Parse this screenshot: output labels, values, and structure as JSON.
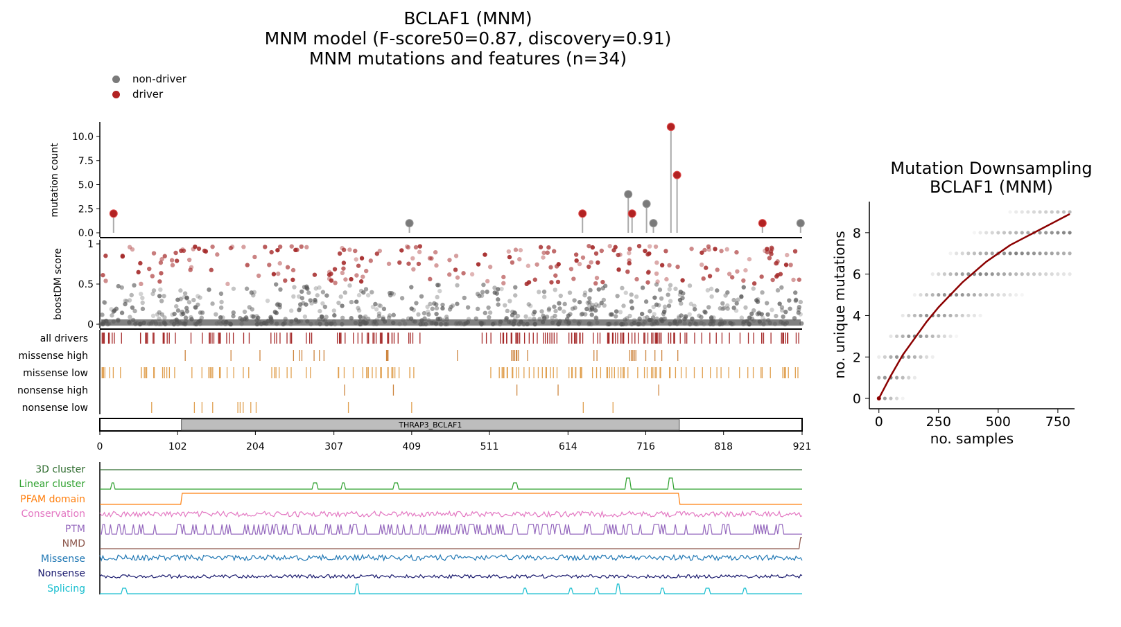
{
  "titles": {
    "line1": "BCLAF1 (MNM)",
    "line2": "MNM model (F-score50=0.87, discovery=0.91)",
    "line3": "MNM mutations and features (n=34)"
  },
  "legend": {
    "non_driver": "non-driver",
    "driver": "driver",
    "colors": {
      "non_driver": "#7a7a7a",
      "driver": "#b22222"
    }
  },
  "chart_data": [
    {
      "type": "scatter",
      "panel": "lollipop",
      "ylabel": "mutation count",
      "yticks": [
        "0.0",
        "2.5",
        "5.0",
        "7.5",
        "10.0"
      ],
      "ylim": [
        0,
        11.5
      ],
      "xlim": [
        0,
        921
      ],
      "points": [
        {
          "pos": 18,
          "count": 2,
          "driver": true
        },
        {
          "pos": 406,
          "count": 1,
          "driver": false
        },
        {
          "pos": 633,
          "count": 2,
          "driver": true
        },
        {
          "pos": 693,
          "count": 4,
          "driver": false
        },
        {
          "pos": 698,
          "count": 2,
          "driver": true
        },
        {
          "pos": 717,
          "count": 3,
          "driver": false
        },
        {
          "pos": 726,
          "count": 1,
          "driver": false
        },
        {
          "pos": 749,
          "count": 11,
          "driver": true
        },
        {
          "pos": 757,
          "count": 6,
          "driver": true
        },
        {
          "pos": 869,
          "count": 1,
          "driver": true
        },
        {
          "pos": 919,
          "count": 1,
          "driver": false
        }
      ]
    },
    {
      "type": "scatter",
      "panel": "boostDM",
      "ylabel": "boostDM score",
      "yticks": [
        "0",
        "0.5",
        "1"
      ],
      "ylim": [
        0,
        1
      ],
      "xlim": [
        0,
        921
      ],
      "driver_threshold": 0.5
    },
    {
      "type": "table",
      "panel": "driver_tracks",
      "rows": [
        "all drivers",
        "missense high",
        "missense low",
        "nonsense high",
        "nonsense low"
      ],
      "colors": [
        "#a52a2a",
        "#cd853f",
        "#e0a050",
        "#cd853f",
        "#e0a050"
      ],
      "missense_high": [
        112,
        172,
        210,
        254,
        262,
        265,
        281,
        288,
        294,
        376,
        377,
        378,
        469,
        540,
        542,
        544,
        546,
        547,
        549,
        561,
        648,
        652,
        695,
        697,
        699,
        701,
        703,
        716,
        728,
        737,
        758
      ],
      "nonsense_high": [
        321,
        385,
        547,
        601,
        733
      ],
      "nonsense_low": [
        68,
        124,
        134,
        148,
        181,
        184,
        188,
        198,
        205,
        326,
        409,
        634,
        673
      ]
    },
    {
      "type": "bar",
      "panel": "domain",
      "xticks": [
        "0",
        "102",
        "204",
        "307",
        "409",
        "511",
        "614",
        "716",
        "818",
        "921"
      ],
      "domain_label": "THRAP3_BCLAF1",
      "domain_range": [
        107,
        760
      ],
      "xlim": [
        0,
        921
      ]
    },
    {
      "type": "line",
      "panel": "features",
      "tracks": [
        {
          "name": "3D cluster",
          "color": "#2e6b2e"
        },
        {
          "name": "Linear cluster",
          "color": "#2ca02c"
        },
        {
          "name": "PFAM domain",
          "color": "#ff7f0e"
        },
        {
          "name": "Conservation",
          "color": "#e377c2"
        },
        {
          "name": "PTM",
          "color": "#9467bd"
        },
        {
          "name": "NMD",
          "color": "#8c564b"
        },
        {
          "name": "Missense",
          "color": "#1f77b4"
        },
        {
          "name": "Nonsense",
          "color": "#1a1a6e"
        },
        {
          "name": "Splicing",
          "color": "#17becf"
        }
      ],
      "linear_cluster_peaks": [
        17,
        282,
        319,
        388,
        545,
        693,
        749
      ],
      "splicing_peaks": [
        32,
        337,
        558,
        617,
        651,
        679,
        738,
        797,
        846
      ]
    },
    {
      "type": "scatter",
      "panel": "downsampling",
      "title": "Mutation Downsampling\nBCLAF1 (MNM)",
      "xlabel": "no. samples",
      "ylabel": "no. unique mutations",
      "xticks": [
        "0",
        "250",
        "500",
        "750"
      ],
      "yticks": [
        "0",
        "2",
        "4",
        "6",
        "8"
      ],
      "xlim": [
        -40,
        820
      ],
      "ylim": [
        -0.5,
        9.5
      ],
      "curve": {
        "x": [
          0,
          50,
          100,
          150,
          200,
          250,
          300,
          350,
          400,
          450,
          500,
          550,
          600,
          650,
          700,
          750,
          800
        ],
        "y": [
          0,
          1.1,
          2.1,
          2.9,
          3.7,
          4.4,
          5.0,
          5.6,
          6.1,
          6.6,
          7.0,
          7.4,
          7.7,
          8.0,
          8.3,
          8.6,
          8.9
        ]
      },
      "curve_color": "#8b0000"
    }
  ]
}
